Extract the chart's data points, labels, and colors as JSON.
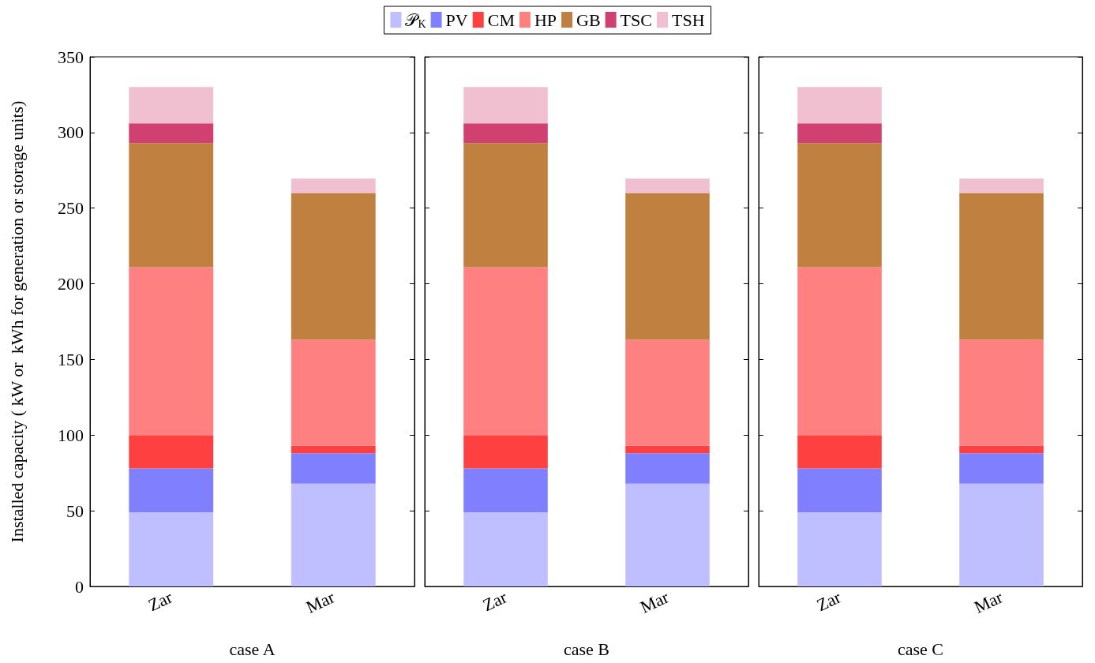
{
  "chart_data": [
    {
      "type": "bar",
      "stacked": true,
      "xlabel": "case A",
      "ylabel": "Installed capacity ( kW or  kWh for generation or storage units)",
      "categories": [
        "Zar",
        "Mar"
      ],
      "ylim": [
        0,
        350
      ],
      "yticks": [
        0,
        50,
        100,
        150,
        200,
        250,
        300,
        350
      ],
      "legend": "top",
      "grid": false,
      "series": [
        {
          "name": "𝒫$_{K}$",
          "color": "#bfbfff",
          "values": [
            49,
            68
          ]
        },
        {
          "name": "PV",
          "color": "#8080ff",
          "values": [
            29,
            20
          ]
        },
        {
          "name": "CM",
          "color": "#ff4040",
          "values": [
            22,
            5
          ]
        },
        {
          "name": "HP",
          "color": "#ff8080",
          "values": [
            111,
            70
          ]
        },
        {
          "name": "GB",
          "color": "#bf8040",
          "values": [
            82,
            97
          ]
        },
        {
          "name": "TSC",
          "color": "#d04070",
          "values": [
            13,
            0
          ]
        },
        {
          "name": "TSH",
          "color": "#f0c0d0",
          "values": [
            24,
            9.5
          ]
        }
      ]
    },
    {
      "type": "bar",
      "stacked": true,
      "xlabel": "case B",
      "categories": [
        "Zar",
        "Mar"
      ],
      "ylim": [
        0,
        350
      ],
      "yticks": [
        0,
        50,
        100,
        150,
        200,
        250,
        300,
        350
      ],
      "tick_labels": "x",
      "grid": false,
      "series": [
        {
          "color": "#bfbfff",
          "values": [
            49,
            68
          ]
        },
        {
          "color": "#8080ff",
          "values": [
            29,
            20
          ]
        },
        {
          "color": "#ff4040",
          "values": [
            22,
            5
          ]
        },
        {
          "color": "#ff8080",
          "values": [
            111,
            70
          ]
        },
        {
          "color": "#bf8040",
          "values": [
            82,
            97
          ]
        },
        {
          "color": "#d04070",
          "values": [
            13,
            0
          ]
        },
        {
          "color": "#f0c0d0",
          "values": [
            24,
            9.5
          ]
        }
      ]
    },
    {
      "type": "bar",
      "stacked": true,
      "xlabel": "case C",
      "categories": [
        "Zar",
        "Mar"
      ],
      "ylim": [
        0,
        350
      ],
      "yticks": [
        0,
        50,
        100,
        150,
        200,
        250,
        300,
        350
      ],
      "tick_labels": "x",
      "grid": false,
      "series": [
        {
          "color": "#bfbfff",
          "values": [
            49,
            68
          ]
        },
        {
          "color": "#8080ff",
          "values": [
            29,
            20
          ]
        },
        {
          "color": "#ff4040",
          "values": [
            22,
            5
          ]
        },
        {
          "color": "#ff8080",
          "values": [
            111,
            70
          ]
        },
        {
          "color": "#bf8040",
          "values": [
            82,
            97
          ]
        },
        {
          "color": "#d04070",
          "values": [
            13,
            0
          ]
        },
        {
          "color": "#f0c0d0",
          "values": [
            24,
            9.5
          ]
        }
      ]
    }
  ]
}
